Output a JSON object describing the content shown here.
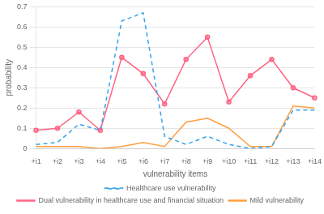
{
  "chart_data": {
    "type": "line",
    "xlabel": "vulnerability items",
    "ylabel": "probability",
    "categories": [
      "+i1",
      "+i2",
      "+i3",
      "+i4",
      "+i5",
      "+i6",
      "+i7",
      "+i8",
      "+i9",
      "+i10",
      "+i11",
      "+i12",
      "+i13",
      "+i14"
    ],
    "series": [
      {
        "name": "Healthcare use vulnerability",
        "line_style": "dashed",
        "marker": "none",
        "values": [
          0.02,
          0.03,
          0.12,
          0.09,
          0.63,
          0.67,
          0.06,
          0.02,
          0.06,
          0.02,
          0.0,
          0.01,
          0.19,
          0.19
        ]
      },
      {
        "name": "Dual vulnerability in healthcare use and financial situation",
        "line_style": "solid",
        "marker": "circle",
        "values": [
          0.09,
          0.1,
          0.18,
          0.09,
          0.45,
          0.37,
          0.22,
          0.44,
          0.55,
          0.23,
          0.36,
          0.44,
          0.3,
          0.25
        ]
      },
      {
        "name": "Mild vulnerability",
        "line_style": "solid",
        "marker": "none",
        "values": [
          0.01,
          0.01,
          0.01,
          0.0,
          0.01,
          0.03,
          0.01,
          0.13,
          0.15,
          0.1,
          0.01,
          0.01,
          0.21,
          0.2
        ]
      }
    ],
    "ylim": [
      0,
      0.7
    ],
    "yticks": [
      0,
      0.1,
      0.2,
      0.3,
      0.4,
      0.5,
      0.6,
      0.7
    ],
    "grid": true,
    "legend": "bottom"
  }
}
